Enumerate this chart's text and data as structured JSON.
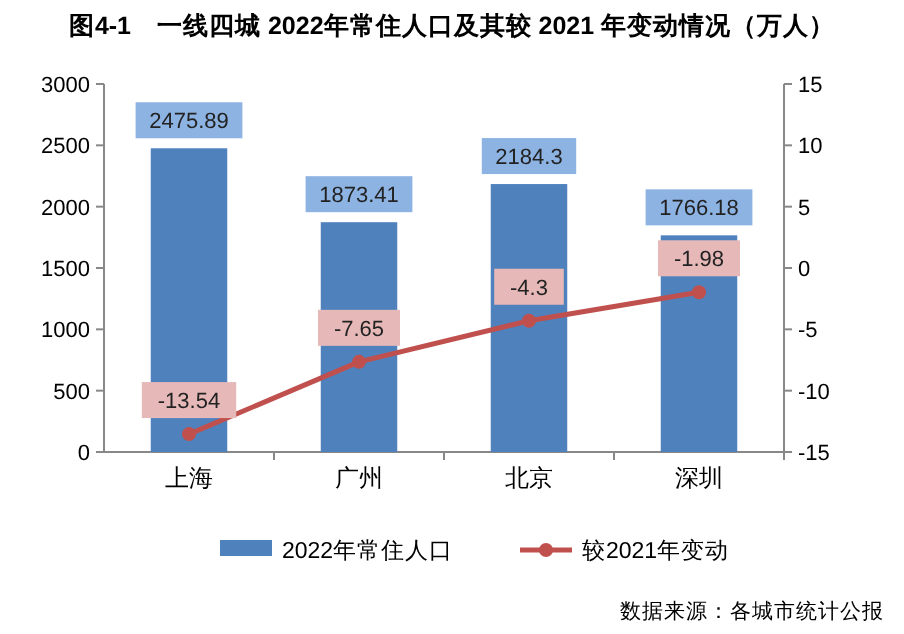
{
  "chart_data": {
    "type": "bar",
    "title": "图4-1　一线四城 2022年常住人口及其较 2021 年变动情况（万人）",
    "categories": [
      "上海",
      "广州",
      "北京",
      "深圳"
    ],
    "series": [
      {
        "name": "2022年常住人口",
        "color": "#4f81bd",
        "values": [
          2475.89,
          1873.41,
          2184.3,
          1766.18
        ]
      },
      {
        "name": "较2021年变动",
        "type": "line",
        "axis": "y2",
        "color": "#c0504d",
        "values": [
          -13.54,
          -7.65,
          -4.3,
          -1.98
        ]
      }
    ],
    "ylim": [
      0,
      3000
    ],
    "yticks": [
      0,
      500,
      1000,
      1500,
      2000,
      2500,
      3000
    ],
    "y2lim": [
      -15,
      15
    ],
    "y2ticks": [
      -15,
      -10,
      -5,
      0,
      5,
      10,
      15
    ],
    "data_labels": true,
    "marker": "circle",
    "legend": "bottom",
    "grid": false,
    "annotations": [
      "数据来源：各城市统计公报"
    ]
  }
}
